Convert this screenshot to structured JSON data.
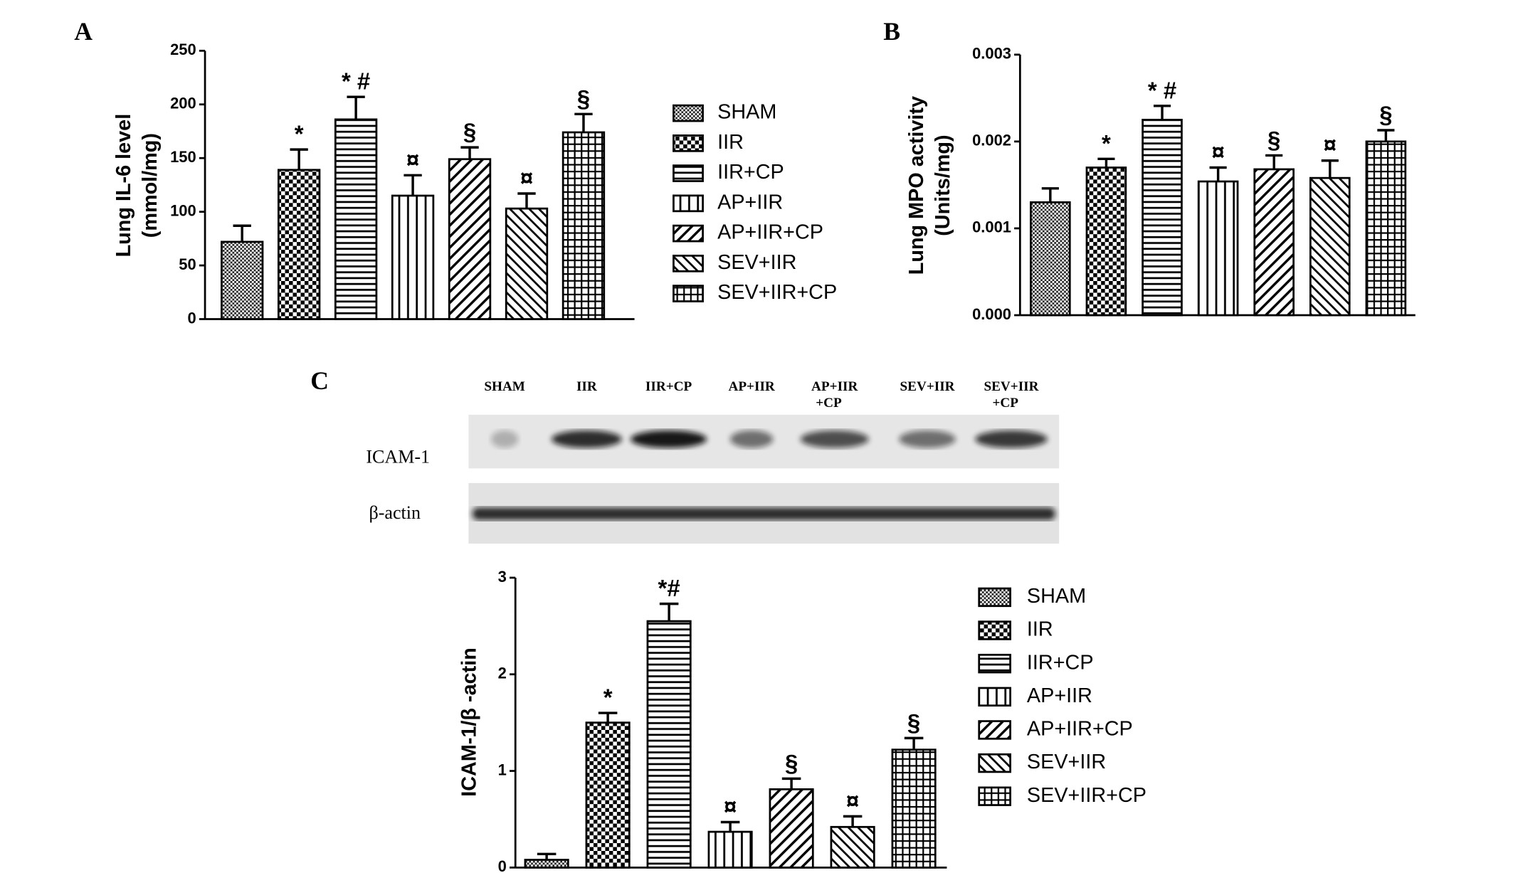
{
  "chart_data": [
    {
      "type": "bar",
      "panel": "A",
      "ylabel": [
        "Lung IL-6 level",
        "(mmol/mg)"
      ],
      "categories": [
        "SHAM",
        "IIR",
        "IIR+CP",
        "AP+IIR",
        "AP+IIR+CP",
        "SEV+IIR",
        "SEV+IIR+CP"
      ],
      "patterns": [
        "dots",
        "checker",
        "hlines",
        "vlines",
        "diag-up",
        "diag-down",
        "grid"
      ],
      "values": [
        72,
        139,
        186,
        115,
        149,
        103,
        174
      ],
      "errors": [
        15,
        19,
        21,
        19,
        11,
        14,
        17
      ],
      "annotations": [
        null,
        "*",
        "* #",
        "¤",
        "§",
        "¤",
        "§"
      ],
      "ylim": [
        0,
        250
      ],
      "yticks": [
        0,
        50,
        100,
        150,
        200,
        250
      ],
      "legend": true
    },
    {
      "type": "bar",
      "panel": "B",
      "ylabel": [
        "Lung MPO activity",
        "(Units/mg)"
      ],
      "categories": [
        "SHAM",
        "IIR",
        "IIR+CP",
        "AP+IIR",
        "AP+IIR+CP",
        "SEV+IIR",
        "SEV+IIR+CP"
      ],
      "patterns": [
        "dots",
        "checker",
        "hlines",
        "vlines",
        "diag-up",
        "diag-down",
        "grid"
      ],
      "values": [
        0.0013,
        0.0017,
        0.00225,
        0.00154,
        0.00168,
        0.00158,
        0.002
      ],
      "errors": [
        0.00016,
        0.0001,
        0.00016,
        0.00016,
        0.00016,
        0.0002,
        0.00013
      ],
      "annotations": [
        null,
        "*",
        "* #",
        "¤",
        "§",
        "¤",
        "§"
      ],
      "ylim": [
        0,
        0.003
      ],
      "yticks": [
        {
          "value": 0,
          "label": "0.000"
        },
        {
          "value": 0.001,
          "label": "0.001"
        },
        {
          "value": 0.002,
          "label": "0.002"
        },
        {
          "value": 0.003,
          "label": "0.003"
        }
      ],
      "legend": false
    },
    {
      "type": "bar",
      "panel": "C",
      "ylabel": [
        "ICAM-1/β -actin"
      ],
      "categories": [
        "SHAM",
        "IIR",
        "IIR+CP",
        "AP+IIR",
        "AP+IIR+CP",
        "SEV+IIR",
        "SEV+IIR+CP"
      ],
      "patterns": [
        "dots",
        "checker",
        "hlines",
        "vlines",
        "diag-up",
        "diag-down",
        "grid"
      ],
      "values": [
        0.08,
        1.5,
        2.55,
        0.37,
        0.81,
        0.42,
        1.22
      ],
      "errors": [
        0.06,
        0.1,
        0.18,
        0.1,
        0.11,
        0.11,
        0.12
      ],
      "annotations": [
        null,
        "*",
        "*#",
        "¤",
        "§",
        "¤",
        "§"
      ],
      "ylim": [
        0,
        3
      ],
      "yticks": [
        0,
        1,
        2,
        3
      ],
      "legend": true
    }
  ],
  "blot": {
    "lanes": [
      [
        "SHAM"
      ],
      [
        "IIR"
      ],
      [
        "IIR+CP"
      ],
      [
        "AP+IIR"
      ],
      [
        "AP+IIR",
        "+CP"
      ],
      [
        "SEV+IIR"
      ],
      [
        "SEV+IIR",
        "+CP"
      ]
    ],
    "rows": [
      "ICAM-1",
      "β-actin"
    ]
  }
}
